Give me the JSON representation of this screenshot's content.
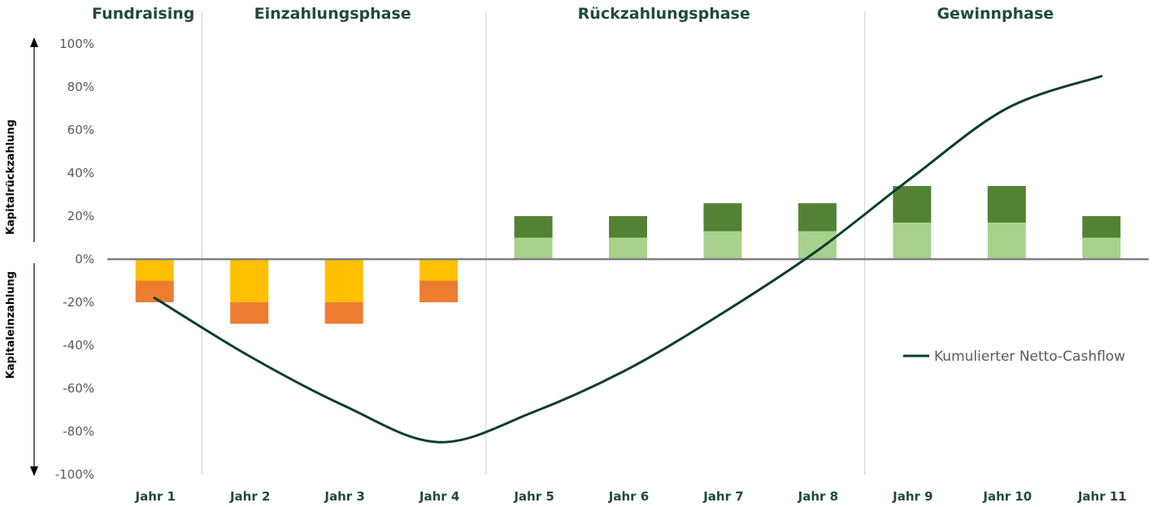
{
  "phases": [
    {
      "label": "Fundraising",
      "from": 1,
      "to": 1
    },
    {
      "label": "Einzahlungsphase",
      "from": 2,
      "to": 4
    },
    {
      "label": "Rückzahlungsphase",
      "from": 5,
      "to": 8
    },
    {
      "label": "Gewinnphase",
      "from": 9,
      "to": 11
    }
  ],
  "axis_titles": {
    "upper": "Kapitalrückzahlung",
    "lower": "Kapitaleinzahlung"
  },
  "legend": {
    "label": "Kumulierter Netto-Cashflow",
    "position": "right"
  },
  "colors": {
    "payin_top": "#ffc000",
    "payin_bottom": "#ed7d31",
    "payout_bottom": "#a9d18e",
    "payout_top": "#548235",
    "line": "#0b3d2e",
    "zero_line": "#7f7f7f",
    "phase_divider": "#d0d0d0",
    "text_dark": "#1f4b3a"
  },
  "chart_data": {
    "type": "bar",
    "categories": [
      "Jahr 1",
      "Jahr 2",
      "Jahr 3",
      "Jahr 4",
      "Jahr 5",
      "Jahr 6",
      "Jahr 7",
      "Jahr 8",
      "Jahr 9",
      "Jahr 10",
      "Jahr 11"
    ],
    "yticks": [
      "100%",
      "80%",
      "60%",
      "40%",
      "20%",
      "0%",
      "-20%",
      "-40%",
      "-60%",
      "-80%",
      "-100%"
    ],
    "ylim": [
      -100,
      100
    ],
    "stacked": true,
    "series": [
      {
        "role": "payin_top",
        "values": [
          -10,
          -20,
          -20,
          -10,
          0,
          0,
          0,
          0,
          0,
          0,
          0
        ]
      },
      {
        "role": "payin_bottom",
        "values": [
          -10,
          -10,
          -10,
          -10,
          0,
          0,
          0,
          0,
          0,
          0,
          0
        ]
      },
      {
        "role": "payout_bottom",
        "values": [
          0,
          0,
          0,
          0,
          10,
          10,
          13,
          13,
          17,
          17,
          10
        ]
      },
      {
        "role": "payout_top",
        "values": [
          0,
          0,
          0,
          0,
          10,
          10,
          13,
          13,
          17,
          17,
          10
        ]
      },
      {
        "name": "Kumulierter Netto-Cashflow",
        "type": "line",
        "x": [
          1,
          2,
          3,
          4,
          5,
          6,
          7,
          8,
          9,
          10,
          11
        ],
        "values": [
          -18,
          -45,
          -68,
          -85,
          -71,
          -51,
          -25,
          4,
          38,
          70,
          85
        ]
      }
    ]
  }
}
